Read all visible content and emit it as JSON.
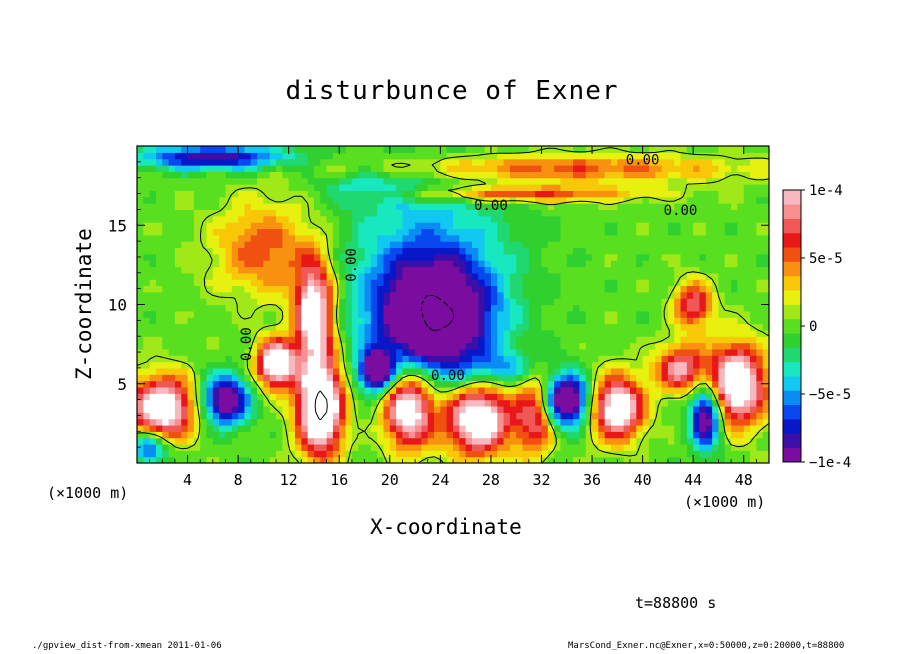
{
  "chart_data": {
    "type": "heatmap",
    "title": "disturbunce of Exner",
    "xlabel": "X-coordinate",
    "ylabel": "Z-coordinate",
    "x_unit_left": "(×1000 m)",
    "x_unit_right": "(×1000 m)",
    "x_ticks": [
      "4",
      "8",
      "12",
      "16",
      "20",
      "24",
      "28",
      "32",
      "36",
      "40",
      "44",
      "48"
    ],
    "x_tick_values": [
      4,
      8,
      12,
      16,
      20,
      24,
      28,
      32,
      36,
      40,
      44,
      48
    ],
    "y_ticks": [
      "5",
      "10",
      "15"
    ],
    "y_tick_values": [
      5,
      10,
      15
    ],
    "xlim": [
      0,
      50
    ],
    "ylim": [
      0,
      20
    ],
    "colorbar": {
      "min": -0.0001,
      "max": 0.0001,
      "labels": [
        "1e-4",
        "5e-5",
        "0",
        "−5e-5",
        "−1e-4"
      ],
      "label_values": [
        0.0001,
        5e-05,
        0,
        -5e-05,
        -0.0001
      ],
      "colors": [
        "#7a0da0",
        "#3c10a8",
        "#0818c8",
        "#0848f0",
        "#0a8cf5",
        "#10c8f0",
        "#18e8c0",
        "#20d870",
        "#30d030",
        "#58e020",
        "#a0e818",
        "#e8f010",
        "#f8c808",
        "#f89010",
        "#f05010",
        "#e81818",
        "#f05858",
        "#f89090",
        "#f8b8c0"
      ]
    },
    "contour_labels": [
      "0.00",
      "0.00",
      "0.00",
      "0.00",
      "0.00",
      "0.00"
    ],
    "contour_label_positions": [
      {
        "x": 40,
        "z": 19.1,
        "angle": 0
      },
      {
        "x": 28,
        "z": 16.2,
        "angle": 0
      },
      {
        "x": 17,
        "z": 12.5,
        "angle": -90
      },
      {
        "x": 8.7,
        "z": 7.5,
        "angle": -90
      },
      {
        "x": 24.6,
        "z": 5.5,
        "angle": 0
      },
      {
        "x": 43,
        "z": 15.9,
        "angle": 0
      }
    ],
    "anomalies": [
      {
        "x": 23.5,
        "z": 9,
        "sx": 4.5,
        "sz": 3.5,
        "amp": -1.25
      },
      {
        "x": 23,
        "z": 12.5,
        "sx": 6.5,
        "sz": 6,
        "amp": -0.5
      },
      {
        "x": 10,
        "z": 13.5,
        "sx": 4,
        "sz": 3,
        "amp": 0.55
      },
      {
        "x": 14,
        "z": 9.5,
        "sx": 1.5,
        "sz": 3.2,
        "amp": 1.3
      },
      {
        "x": 14.5,
        "z": 3.5,
        "sx": 1.8,
        "sz": 3,
        "amp": 1.6
      },
      {
        "x": 2,
        "z": 3.5,
        "sx": 2.5,
        "sz": 2,
        "amp": 1.3
      },
      {
        "x": 11,
        "z": 6.3,
        "sx": 1.5,
        "sz": 1.5,
        "amp": 1.4
      },
      {
        "x": 7,
        "z": 4,
        "sx": 1.8,
        "sz": 1.5,
        "amp": -1.2
      },
      {
        "x": 21.5,
        "z": 3.5,
        "sx": 2,
        "sz": 2.5,
        "amp": 1.3
      },
      {
        "x": 27,
        "z": 2.8,
        "sx": 2.6,
        "sz": 2.2,
        "amp": 1.4
      },
      {
        "x": 31.5,
        "z": 3,
        "sx": 1.5,
        "sz": 2.5,
        "amp": 0.8
      },
      {
        "x": 34,
        "z": 4,
        "sx": 1.8,
        "sz": 1.6,
        "amp": -1.3
      },
      {
        "x": 38,
        "z": 3.5,
        "sx": 2,
        "sz": 2,
        "amp": 1.3
      },
      {
        "x": 43,
        "z": 6,
        "sx": 2,
        "sz": 1.5,
        "amp": 0.9
      },
      {
        "x": 47.5,
        "z": 5,
        "sx": 2.2,
        "sz": 2.5,
        "amp": 1.4
      },
      {
        "x": 45,
        "z": 3,
        "sx": 1.2,
        "sz": 2,
        "amp": -1.2
      },
      {
        "x": 33,
        "z": 18.6,
        "sx": 15,
        "sz": 0.9,
        "amp": 0.55
      },
      {
        "x": 30,
        "z": 17,
        "sx": 10,
        "sz": 0.5,
        "amp": 0.6
      },
      {
        "x": 6,
        "z": 19.3,
        "sx": 6,
        "sz": 0.8,
        "amp": -0.9
      },
      {
        "x": 18,
        "z": 17.5,
        "sx": 4,
        "sz": 1,
        "amp": -0.3
      },
      {
        "x": 19,
        "z": 5.8,
        "sx": 1.3,
        "sz": 1.2,
        "amp": -1.3
      },
      {
        "x": 29,
        "z": 6,
        "sx": 2.5,
        "sz": 1,
        "amp": -0.4
      },
      {
        "x": 44,
        "z": 10,
        "sx": 1.5,
        "sz": 1.5,
        "amp": 0.8
      },
      {
        "x": 1,
        "z": 1,
        "sx": 1.5,
        "sz": 1,
        "amp": -0.8
      }
    ],
    "time_label": "t=88800 s"
  },
  "footer": {
    "left": "./gpview_dist-from-xmean  2011-01-06",
    "right": "MarsCond_Exner.nc@Exner,x=0:50000,z=0:20000,t=88800"
  }
}
